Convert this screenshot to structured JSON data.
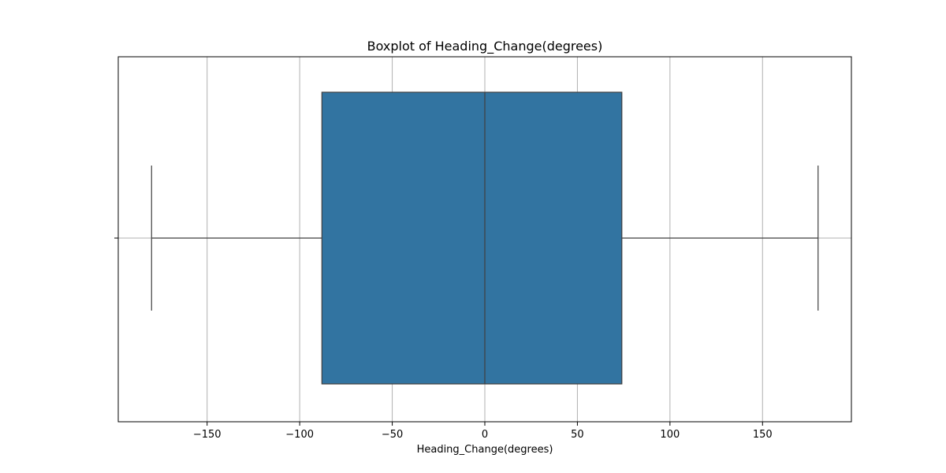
{
  "chart_data": {
    "type": "boxplot",
    "title": "Boxplot of Heading_Change(degrees)",
    "xlabel": "Heading_Change(degrees)",
    "ylabel": "",
    "orientation": "horizontal",
    "xlim": [
      -198,
      198
    ],
    "x_ticks": [
      -150,
      -100,
      -50,
      0,
      50,
      100,
      150
    ],
    "x_tick_labels": [
      "−150",
      "−100",
      "−50",
      "0",
      "50",
      "100",
      "150"
    ],
    "grid": true,
    "box": {
      "whisker_low": -180,
      "q1": -88,
      "median": 0,
      "q3": 74,
      "whisker_high": 180
    },
    "colors": {
      "box_fill": "#3274a1",
      "line": "#3f3f3f",
      "grid": "#b0b0b0",
      "axes": "#000000"
    }
  }
}
